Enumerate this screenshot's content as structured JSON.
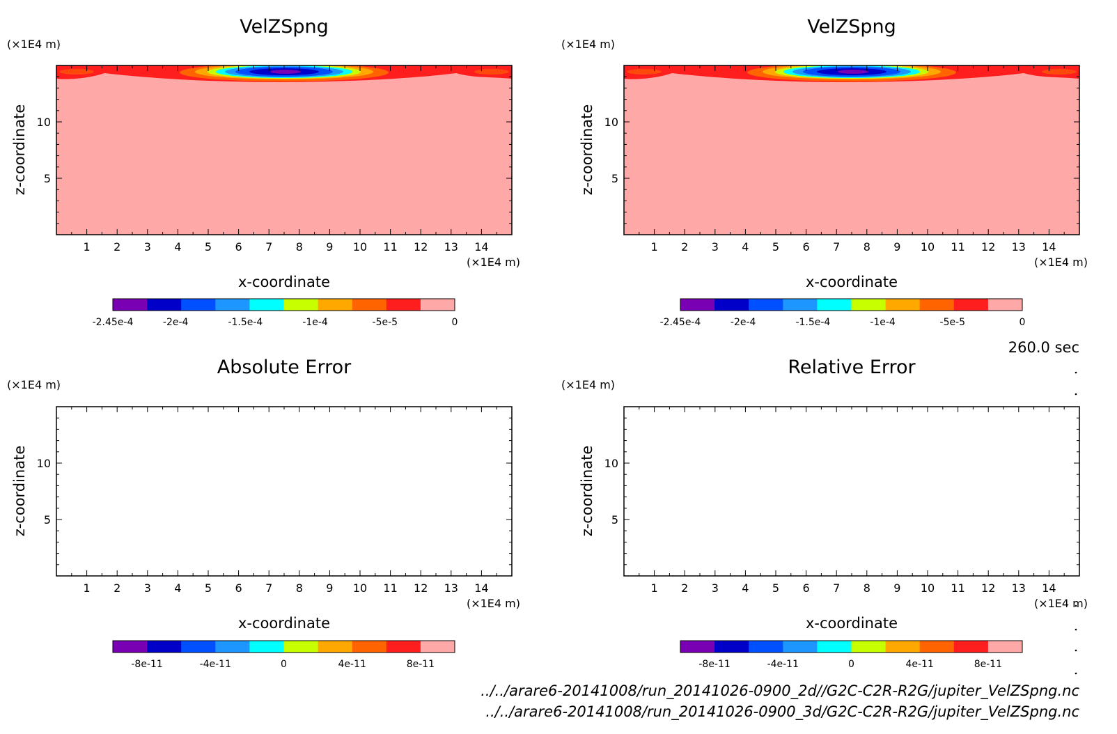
{
  "figure": {
    "time_label": "260.0 sec",
    "file_paths": [
      "../../arare6-20141008/run_20141026-0900_2d//G2C-C2R-R2G/jupiter_VelZSpng.nc",
      "../../arare6-20141008/run_20141026-0900_3d/G2C-C2R-R2G/jupiter_VelZSpng.nc"
    ]
  },
  "colors": {
    "background_field": "#ffa8a8",
    "levels": [
      "#7a00b3",
      "#0000c8",
      "#0050ff",
      "#1e96ff",
      "#00ffff",
      "#c8ff00",
      "#ffa800",
      "#ff6400",
      "#ff1e1e",
      "#ffa8a8"
    ]
  },
  "chart_data": [
    {
      "type": "heatmap",
      "title": "VelZSpng",
      "xlabel": "x-coordinate",
      "ylabel": "z-coordinate",
      "x_unit": "(×1E4 m)",
      "y_unit": "(×1E4 m)",
      "xlim": [
        0,
        15
      ],
      "ylim": [
        0,
        15
      ],
      "x_ticks": [
        1,
        2,
        3,
        4,
        5,
        6,
        7,
        8,
        9,
        10,
        11,
        12,
        13,
        14
      ],
      "y_ticks": [
        5,
        10
      ],
      "field": "sponge velocity, minimum near x=7.6, z=14.5",
      "colorbar": {
        "ticks": [
          "-2.45e-4",
          "-2e-4",
          "-1.5e-4",
          "-1e-4",
          "-5e-5",
          "0"
        ],
        "range": [
          -0.000245,
          0
        ]
      }
    },
    {
      "type": "heatmap",
      "title": "VelZSpng",
      "xlabel": "x-coordinate",
      "ylabel": "z-coordinate",
      "x_unit": "(×1E4 m)",
      "y_unit": "(×1E4 m)",
      "xlim": [
        0,
        15
      ],
      "ylim": [
        0,
        15
      ],
      "x_ticks": [
        1,
        2,
        3,
        4,
        5,
        6,
        7,
        8,
        9,
        10,
        11,
        12,
        13,
        14
      ],
      "y_ticks": [
        5,
        10
      ],
      "field": "sponge velocity, minimum near x=7.6, z=14.5",
      "colorbar": {
        "ticks": [
          "-2.45e-4",
          "-2e-4",
          "-1.5e-4",
          "-1e-4",
          "-5e-5",
          "0"
        ],
        "range": [
          -0.000245,
          0
        ]
      }
    },
    {
      "type": "heatmap",
      "title": "Absolute Error",
      "xlabel": "x-coordinate",
      "ylabel": "z-coordinate",
      "x_unit": "(×1E4 m)",
      "y_unit": "(×1E4 m)",
      "xlim": [
        0,
        15
      ],
      "ylim": [
        0,
        15
      ],
      "x_ticks": [
        1,
        2,
        3,
        4,
        5,
        6,
        7,
        8,
        9,
        10,
        11,
        12,
        13,
        14
      ],
      "y_ticks": [
        5,
        10
      ],
      "field": "empty",
      "colorbar": {
        "ticks": [
          "-8e-11",
          "-4e-11",
          "0",
          "4e-11",
          "8e-11"
        ],
        "range": [
          -1e-10,
          1e-10
        ]
      }
    },
    {
      "type": "heatmap",
      "title": "Relative Error",
      "xlabel": "x-coordinate",
      "ylabel": "z-coordinate",
      "x_unit": "(×1E4 m)",
      "y_unit": "(×1E4 m)",
      "xlim": [
        0,
        15
      ],
      "ylim": [
        0,
        15
      ],
      "x_ticks": [
        1,
        2,
        3,
        4,
        5,
        6,
        7,
        8,
        9,
        10,
        11,
        12,
        13,
        14
      ],
      "y_ticks": [
        5,
        10
      ],
      "field": "empty",
      "colorbar": {
        "ticks": [
          "-8e-11",
          "-4e-11",
          "0",
          "4e-11",
          "8e-11"
        ],
        "range": [
          -1e-10,
          1e-10
        ]
      }
    }
  ]
}
